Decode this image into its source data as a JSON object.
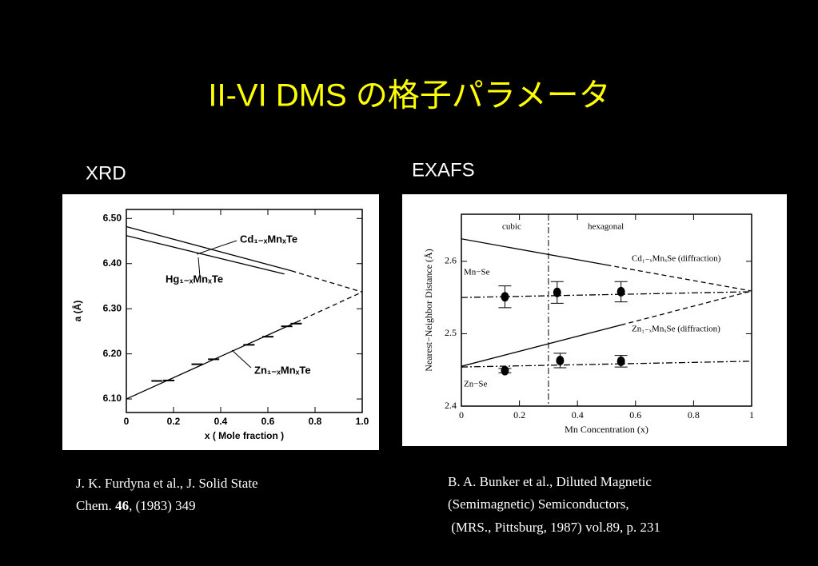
{
  "slide": {
    "title": "II-VI DMS の格子パラメータ",
    "labels": [
      "XRD",
      "EXAFS"
    ],
    "caption_left": [
      [
        "J. K. Furdyna et al., J. Solid State"
      ],
      [
        "Chem. ",
        "46",
        ", (1983) 349"
      ]
    ],
    "caption_right": [
      "B. A. Bunker  et al., Diluted Magnetic",
      "(Semimagnetic) Semiconductors,",
      " (MRS., Pittsburg, 1987) vol.89, p. 231"
    ]
  },
  "chart_data": [
    {
      "type": "line",
      "x_label": "x ( Mole fraction )",
      "y_label": "a (Å)",
      "xlim": [
        0,
        1
      ],
      "ylim": [
        6.07,
        6.52
      ],
      "xticks": [
        0,
        0.2,
        0.4,
        0.6,
        0.8,
        {
          "value": 1,
          "label": "1.0"
        }
      ],
      "yticks": [
        {
          "value": 6.1,
          "label": "6.10"
        },
        {
          "value": 6.2,
          "label": "6.20"
        },
        {
          "value": 6.3,
          "label": "6.30"
        },
        {
          "value": 6.4,
          "label": "6.40"
        },
        {
          "value": 6.5,
          "label": "6.50"
        }
      ],
      "annotations": [
        "Cd₁₋ₓMnₓTe",
        "Hg₁₋ₓMnₓTe",
        "Zn₁₋ₓMnₓTe"
      ],
      "series": [
        {
          "style": "solid",
          "color": "#000000",
          "x": [
            0,
            0.7
          ],
          "values": [
            6.482,
            6.384
          ]
        },
        {
          "style": "dashed",
          "color": "#000000",
          "x": [
            0.7,
            1
          ],
          "values": [
            6.384,
            6.337
          ]
        },
        {
          "style": "solid",
          "color": "#000000",
          "x": [
            0,
            0.67
          ],
          "values": [
            6.462,
            6.377
          ]
        },
        {
          "style": "solid",
          "color": "#000000",
          "x": [
            0,
            0.72
          ],
          "values": [
            6.1,
            6.27
          ]
        },
        {
          "style": "dashed",
          "color": "#000000",
          "x": [
            0.72,
            1
          ],
          "values": [
            6.27,
            6.337
          ]
        },
        {
          "style": "hbar",
          "color": "#000000",
          "x": [
            0.13,
            0.18,
            0.3,
            0.37,
            0.52,
            0.6,
            0.68,
            0.72
          ],
          "values": [
            6.14,
            6.141,
            6.177,
            6.188,
            6.22,
            6.238,
            6.261,
            6.267
          ]
        }
      ]
    },
    {
      "type": "line",
      "x_label": "Mn Concentration (x)",
      "y_label": "Nearest−Neighbor Distance (Å)",
      "xlim": [
        0,
        1
      ],
      "ylim": [
        2.4,
        2.665
      ],
      "xticks": [
        0,
        0.2,
        0.4,
        0.6,
        0.8,
        1
      ],
      "yticks": [
        2.4,
        2.5,
        2.6
      ],
      "divider_x": 0.3,
      "annotations": [
        "cubic",
        "hexagonal",
        "Mn−Se",
        "Zn−Se",
        "Cd₁₋ₓMnₓSe (diffraction)",
        "Zn₁₋ₓMnₓSe (diffraction)"
      ],
      "series": [
        {
          "style": "solid",
          "color": "#000000",
          "x": [
            0,
            0.5
          ],
          "values": [
            2.631,
            2.595
          ]
        },
        {
          "style": "dashed",
          "color": "#000000",
          "x": [
            0.5,
            1
          ],
          "values": [
            2.595,
            2.559
          ]
        },
        {
          "style": "solid",
          "color": "#000000",
          "x": [
            0,
            0.55
          ],
          "values": [
            2.455,
            2.512
          ]
        },
        {
          "style": "dashed",
          "color": "#000000",
          "x": [
            0.55,
            1
          ],
          "values": [
            2.512,
            2.559
          ]
        },
        {
          "style": "dashdot",
          "color": "#000000",
          "x": [
            0,
            1
          ],
          "values": [
            2.55,
            2.558
          ]
        },
        {
          "style": "dashdot",
          "color": "#000000",
          "x": [
            0,
            1
          ],
          "values": [
            2.454,
            2.462
          ]
        },
        {
          "style": "dot",
          "color": "#000000",
          "x": [
            0.15,
            0.33,
            0.55
          ],
          "values": [
            2.551,
            2.557,
            2.558
          ],
          "errors": [
            0.015,
            0.015,
            0.014
          ]
        },
        {
          "style": "dot",
          "color": "#000000",
          "x": [
            0.15,
            0.34,
            0.55
          ],
          "values": [
            2.449,
            2.463,
            2.462
          ],
          "errors": [
            0.003,
            0.01,
            0.008
          ]
        }
      ]
    }
  ]
}
